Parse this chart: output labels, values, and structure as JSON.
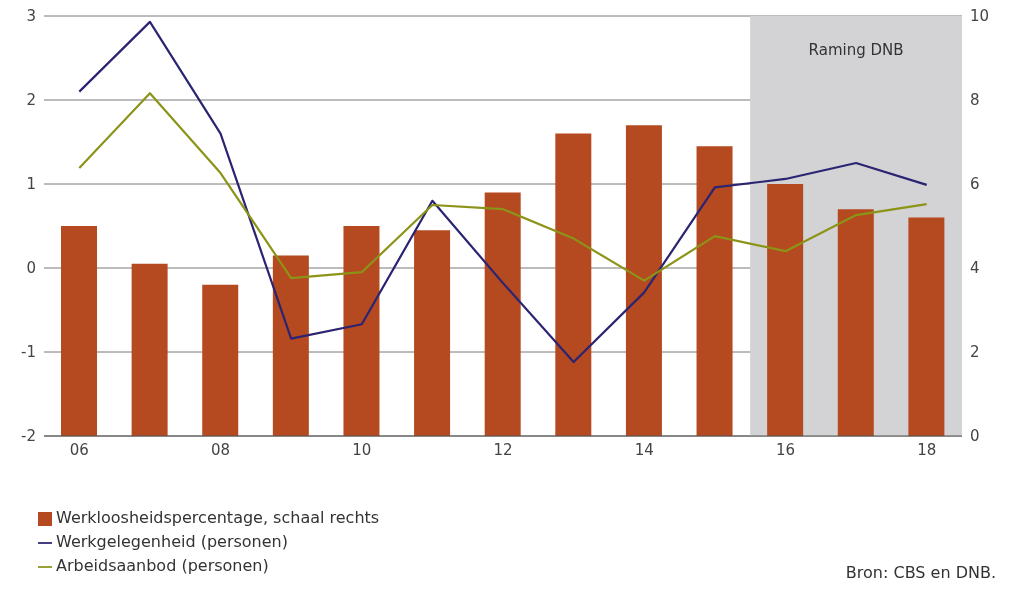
{
  "chart_data": {
    "type": "line",
    "categories": [
      "06",
      null,
      "08",
      null,
      "10",
      null,
      "12",
      null,
      "14",
      null,
      "16",
      null,
      "18"
    ],
    "series": [
      {
        "name": "Werkloosheidspercentage, schaal rechts",
        "type": "bar",
        "axis": "y2",
        "color": "#b5491f",
        "values": [
          5.0,
          4.1,
          3.6,
          4.3,
          5.0,
          4.9,
          5.8,
          7.2,
          7.4,
          6.9,
          6.0,
          5.4,
          5.2
        ]
      },
      {
        "name": "Werkgelegenheid (personen)",
        "color": "#2a2472",
        "values": [
          2.1,
          2.93,
          1.6,
          -0.84,
          -0.67,
          0.8,
          -0.18,
          -1.12,
          -0.29,
          0.96,
          1.06,
          1.25,
          0.99
        ]
      },
      {
        "name": "Arbeidsaanbod (personen)",
        "color": "#8c9418",
        "values": [
          1.19,
          2.08,
          1.13,
          -0.12,
          -0.05,
          0.75,
          0.7,
          0.35,
          -0.15,
          0.38,
          0.2,
          0.63,
          0.76
        ]
      }
    ],
    "ylim": [
      -2,
      3
    ],
    "yticks": [
      -2,
      -1,
      0,
      1,
      2,
      3
    ],
    "y2lim": [
      0,
      10
    ],
    "y2ticks": [
      0,
      2,
      4,
      6,
      8,
      10
    ],
    "bands": [
      {
        "axis": "x",
        "from": "16",
        "to": "18",
        "label": "Raming DNB",
        "color": "#d3d3d6"
      }
    ],
    "grid": "y",
    "legend": "bottom left",
    "marker": "none",
    "line_style": "solid",
    "annotations": [
      "Bron: CBS en DNB."
    ]
  }
}
